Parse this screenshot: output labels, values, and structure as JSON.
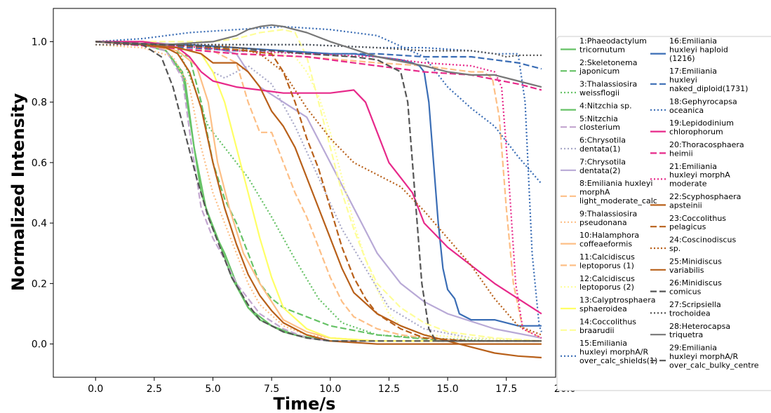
{
  "chart_data": {
    "type": "line",
    "title": "",
    "xlabel": "Time/s",
    "ylabel": "Normalized Intensity",
    "xlim": [
      -1.8,
      19.6
    ],
    "ylim": [
      -0.11,
      1.11
    ],
    "xticks": [
      "0.0",
      "2.5",
      "5.0",
      "7.5",
      "10.0",
      "12.5",
      "15.0",
      "17.5",
      "20.0"
    ],
    "yticks": [
      "0.0",
      "0.2",
      "0.4",
      "0.6",
      "0.8",
      "1.0"
    ],
    "grid": false,
    "legend_position": "right",
    "series": [
      {
        "name": "1:Phaeodactylum tricornutum",
        "color": "#66c266",
        "dash": "solid",
        "x": [
          0,
          2,
          3,
          3.7,
          4.1,
          4.5,
          5,
          5.5,
          6,
          6.5,
          7,
          8,
          9,
          10,
          12,
          15,
          19
        ],
        "y": [
          1,
          0.99,
          0.97,
          0.9,
          0.7,
          0.5,
          0.38,
          0.3,
          0.2,
          0.12,
          0.08,
          0.04,
          0.02,
          0.01,
          0.01,
          0.01,
          0.01
        ]
      },
      {
        "name": "2:Skeletonema japonicum",
        "color": "#66c266",
        "dash": "dashed",
        "x": [
          0,
          2,
          3,
          4,
          4.5,
          5,
          5.5,
          6,
          6.5,
          7,
          7.5,
          8,
          9,
          10,
          12,
          15,
          19
        ],
        "y": [
          1,
          0.99,
          0.98,
          0.95,
          0.8,
          0.6,
          0.48,
          0.4,
          0.3,
          0.2,
          0.15,
          0.12,
          0.09,
          0.06,
          0.03,
          0.01,
          0.01
        ]
      },
      {
        "name": "3:Thalassiosira weissflogii",
        "color": "#66c266",
        "dash": "dotted",
        "x": [
          0,
          2,
          3.5,
          4.2,
          4.8,
          5.5,
          6.5,
          7.5,
          8.5,
          9.5,
          10.5,
          12,
          14,
          17,
          19
        ],
        "y": [
          1,
          1,
          0.98,
          0.85,
          0.72,
          0.65,
          0.55,
          0.42,
          0.28,
          0.15,
          0.07,
          0.03,
          0.02,
          0.01,
          0.01
        ]
      },
      {
        "name": "4:Nitzchia sp.",
        "color": "#66c266",
        "dash": "solid",
        "x": [
          0,
          2,
          3,
          3.8,
          4.2,
          4.7,
          5.2,
          5.8,
          6.5,
          7.5,
          8.5,
          10,
          13,
          19
        ],
        "y": [
          1,
          0.99,
          0.97,
          0.88,
          0.65,
          0.45,
          0.35,
          0.22,
          0.12,
          0.06,
          0.03,
          0.01,
          0.01,
          0.01
        ]
      },
      {
        "name": "5:Nitzchia closterium",
        "color": "#c2a5cf",
        "dash": "dashed",
        "x": [
          0,
          2,
          3,
          3.7,
          4.1,
          4.5,
          5,
          5.5,
          6,
          7,
          8,
          9,
          10,
          13,
          19
        ],
        "y": [
          1,
          0.99,
          0.97,
          0.88,
          0.65,
          0.45,
          0.35,
          0.28,
          0.2,
          0.1,
          0.05,
          0.02,
          0.01,
          0.01,
          0.01
        ]
      },
      {
        "name": "6:Chrysotila dentata(1)",
        "color": "#a9a9c8",
        "dash": "dotted",
        "x": [
          0,
          2,
          3.5,
          4.5,
          5,
          5.5,
          6.5,
          7.5,
          8.5,
          9.5,
          10.5,
          11.5,
          12.5,
          14,
          16,
          19
        ],
        "y": [
          1,
          1,
          0.98,
          0.96,
          0.9,
          0.88,
          0.92,
          0.86,
          0.72,
          0.55,
          0.38,
          0.25,
          0.12,
          0.05,
          0.02,
          0.01
        ]
      },
      {
        "name": "7:Chrysotila dentata(2)",
        "color": "#b8a9d6",
        "dash": "solid",
        "x": [
          0,
          2,
          3.5,
          5,
          6,
          6.5,
          7,
          8,
          9,
          10,
          11,
          12,
          13,
          14,
          15,
          17,
          19
        ],
        "y": [
          1,
          1,
          0.99,
          0.98,
          0.96,
          0.9,
          0.85,
          0.8,
          0.75,
          0.6,
          0.45,
          0.3,
          0.2,
          0.14,
          0.1,
          0.05,
          0.02
        ]
      },
      {
        "name": "8:Emiliania huxleyi morphA light_moderate_calc",
        "color": "#fdbf86",
        "dash": "dashed",
        "x": [
          0,
          3,
          5,
          6,
          6.5,
          7,
          7.5,
          8,
          8.5,
          9,
          9.5,
          10,
          10.5,
          11,
          12,
          13,
          14,
          16,
          19
        ],
        "y": [
          1,
          0.99,
          0.97,
          0.93,
          0.8,
          0.7,
          0.7,
          0.6,
          0.5,
          0.42,
          0.32,
          0.22,
          0.14,
          0.09,
          0.05,
          0.03,
          0.02,
          0.01,
          0.01
        ]
      },
      {
        "name": "9:Thalassiosira pseudonana",
        "color": "#fdbf86",
        "dash": "dotted",
        "x": [
          0,
          2,
          3.3,
          4,
          4.5,
          5,
          5.5,
          6,
          6.5,
          7,
          8,
          9,
          10,
          12,
          15,
          19
        ],
        "y": [
          0.99,
          0.98,
          0.95,
          0.85,
          0.65,
          0.5,
          0.4,
          0.3,
          0.2,
          0.13,
          0.06,
          0.03,
          0.02,
          0.01,
          0.01,
          0.01
        ]
      },
      {
        "name": "10:Halamphora coffeaeformis",
        "color": "#fdbf86",
        "dash": "solid",
        "x": [
          0,
          2,
          3.5,
          4.3,
          4.8,
          5.2,
          5.7,
          6.3,
          7,
          7.5,
          8,
          9,
          10,
          12,
          19
        ],
        "y": [
          1,
          0.99,
          0.97,
          0.92,
          0.8,
          0.6,
          0.45,
          0.3,
          0.2,
          0.14,
          0.08,
          0.04,
          0.02,
          0.01,
          0.01
        ]
      },
      {
        "name": "11:Calcidiscus leptoporus (1)",
        "color": "#fdbf86",
        "dash": "dashed",
        "x": [
          0,
          3,
          6,
          9,
          12,
          14,
          15,
          16,
          16.5,
          16.9,
          17.2,
          17.5,
          17.8,
          18.2,
          19
        ],
        "y": [
          1,
          0.98,
          0.96,
          0.95,
          0.93,
          0.92,
          0.91,
          0.9,
          0.9,
          0.88,
          0.75,
          0.45,
          0.2,
          0.05,
          0.02
        ]
      },
      {
        "name": "12:Calcidiscus leptoporus (2)",
        "color": "#fefe99",
        "dash": "dotted",
        "x": [
          0,
          3,
          5,
          6.5,
          7.5,
          8.5,
          9,
          9.5,
          10,
          10.5,
          11,
          11.5,
          12,
          12.5,
          13,
          14,
          16,
          19
        ],
        "y": [
          1,
          0.99,
          0.98,
          0.97,
          0.96,
          0.95,
          0.9,
          0.82,
          0.7,
          0.55,
          0.4,
          0.28,
          0.18,
          0.1,
          0.06,
          0.03,
          0.02,
          0.01
        ]
      },
      {
        "name": "13:Calyptrosphaera sphaeroidea",
        "color": "#ffff66",
        "dash": "solid",
        "x": [
          0,
          2,
          3.5,
          4.5,
          5,
          5.5,
          6,
          6.5,
          7,
          7.5,
          8,
          9,
          10,
          12,
          19
        ],
        "y": [
          1,
          0.99,
          0.98,
          0.96,
          0.9,
          0.8,
          0.65,
          0.5,
          0.35,
          0.22,
          0.12,
          0.05,
          0.02,
          0.01,
          0.01
        ]
      },
      {
        "name": "14:Coccolithus braarudii",
        "color": "#fefe99",
        "dash": "dashed",
        "x": [
          0,
          3,
          5,
          6,
          7,
          8,
          8.5,
          9,
          9.5,
          10,
          10.5,
          11,
          11.5,
          12,
          13,
          14,
          15,
          17,
          19
        ],
        "y": [
          1,
          1,
          1,
          1.01,
          1.03,
          1.04,
          1.03,
          0.95,
          0.8,
          0.65,
          0.5,
          0.38,
          0.28,
          0.2,
          0.12,
          0.07,
          0.04,
          0.02,
          0.01
        ]
      },
      {
        "name": "15:Emiliania huxleyi morphA/R over_calc_shields(1)",
        "color": "#3a6db5",
        "dash": "dotted",
        "x": [
          0,
          2,
          4,
          6,
          8,
          10,
          12,
          14,
          15,
          16,
          17,
          18,
          19
        ],
        "y": [
          1,
          1.01,
          1.03,
          1.04,
          1.05,
          1.04,
          1.02,
          0.95,
          0.85,
          0.78,
          0.72,
          0.62,
          0.53
        ]
      },
      {
        "name": "16:Emiliania huxleyi haploid (1216)",
        "color": "#3a6db5",
        "dash": "solid",
        "x": [
          0,
          2,
          4,
          6,
          8,
          10,
          11,
          12,
          13,
          13.5,
          13.8,
          14,
          14.2,
          14.4,
          14.6,
          14.8,
          15,
          15.3,
          15.5,
          16,
          17,
          18,
          18.5,
          19
        ],
        "y": [
          1,
          0.99,
          0.99,
          0.98,
          0.97,
          0.96,
          0.96,
          0.95,
          0.94,
          0.93,
          0.92,
          0.9,
          0.8,
          0.6,
          0.4,
          0.25,
          0.18,
          0.15,
          0.1,
          0.08,
          0.08,
          0.06,
          0.06,
          0.06
        ]
      },
      {
        "name": "17:Emiliania huxleyi naked_diploid(1731)",
        "color": "#3a6db5",
        "dash": "dashed",
        "x": [
          0,
          2,
          4,
          6,
          8,
          10,
          12,
          14,
          16,
          17,
          18,
          19
        ],
        "y": [
          1,
          0.99,
          0.98,
          0.97,
          0.97,
          0.96,
          0.96,
          0.95,
          0.95,
          0.94,
          0.93,
          0.91
        ]
      },
      {
        "name": "18:Gephyrocapsa oceanica",
        "color": "#3a6db5",
        "dash": "dotted",
        "x": [
          0,
          3,
          6,
          9,
          12,
          14,
          16,
          17,
          18,
          18.3,
          18.6,
          18.9,
          19
        ],
        "y": [
          1,
          0.99,
          0.99,
          0.99,
          0.98,
          0.98,
          0.97,
          0.96,
          0.96,
          0.8,
          0.3,
          0.06,
          0.04
        ]
      },
      {
        "name": "19:Lepidodinium chlorophorum",
        "color": "#e7298a",
        "dash": "solid",
        "x": [
          0,
          2,
          3,
          3.5,
          4,
          4.5,
          5,
          6,
          7,
          8,
          9,
          10,
          11,
          11.5,
          12,
          12.5,
          13,
          13.5,
          14,
          15,
          16,
          17,
          18,
          19
        ],
        "y": [
          1,
          1,
          0.99,
          0.98,
          0.95,
          0.9,
          0.87,
          0.85,
          0.84,
          0.83,
          0.83,
          0.83,
          0.84,
          0.8,
          0.7,
          0.6,
          0.55,
          0.5,
          0.4,
          0.32,
          0.26,
          0.2,
          0.15,
          0.1
        ]
      },
      {
        "name": "20:Thoracosphaera heimii",
        "color": "#e7298a",
        "dash": "dashed",
        "x": [
          0,
          3,
          6,
          9,
          12,
          14,
          16,
          18,
          19
        ],
        "y": [
          1,
          0.98,
          0.96,
          0.95,
          0.92,
          0.9,
          0.89,
          0.86,
          0.84
        ]
      },
      {
        "name": "21:Emiliania huxleyi morphA moderate",
        "color": "#e7298a",
        "dash": "dotted",
        "x": [
          0,
          3,
          6,
          9,
          12,
          14,
          16,
          17,
          17.3,
          17.6,
          17.9,
          18.2,
          19
        ],
        "y": [
          1,
          0.99,
          0.97,
          0.96,
          0.95,
          0.93,
          0.92,
          0.9,
          0.85,
          0.55,
          0.2,
          0.05,
          0.02
        ]
      },
      {
        "name": "22:Scyphosphaera apsteinii",
        "color": "#b8601a",
        "dash": "solid",
        "x": [
          0,
          2,
          3.5,
          4.5,
          5,
          5.5,
          6,
          6.5,
          7,
          7.5,
          8,
          8.5,
          9,
          9.5,
          10,
          10.5,
          11,
          12,
          13,
          14,
          15,
          16,
          17,
          18,
          19
        ],
        "y": [
          1,
          0.99,
          0.98,
          0.96,
          0.93,
          0.93,
          0.93,
          0.9,
          0.85,
          0.77,
          0.72,
          0.65,
          0.55,
          0.45,
          0.35,
          0.25,
          0.17,
          0.1,
          0.06,
          0.03,
          0.01,
          -0.01,
          -0.03,
          -0.04,
          -0.045
        ]
      },
      {
        "name": "23:Coccolithus pelagicus",
        "color": "#b8601a",
        "dash": "dashed",
        "x": [
          0,
          3,
          5,
          6.5,
          7.5,
          8,
          8.5,
          9,
          9.5,
          10,
          10.5,
          11,
          11.5,
          12,
          13,
          14,
          16,
          19
        ],
        "y": [
          1,
          0.99,
          0.98,
          0.97,
          0.96,
          0.9,
          0.8,
          0.68,
          0.58,
          0.45,
          0.32,
          0.22,
          0.15,
          0.1,
          0.05,
          0.02,
          0.01,
          0.01
        ]
      },
      {
        "name": "24:Coscinodiscus sp.",
        "color": "#b8601a",
        "dash": "dotted",
        "x": [
          0,
          3,
          5,
          6,
          7,
          8,
          9,
          10,
          11,
          12,
          13,
          14,
          15,
          16,
          17,
          18,
          19
        ],
        "y": [
          1,
          0.99,
          0.99,
          0.98,
          0.96,
          0.9,
          0.78,
          0.68,
          0.6,
          0.56,
          0.52,
          0.44,
          0.35,
          0.26,
          0.15,
          0.06,
          0.03
        ]
      },
      {
        "name": "25:Minidiscus variabilis",
        "color": "#b8601a",
        "dash": "solid",
        "x": [
          0,
          2,
          3,
          3.5,
          4,
          4.5,
          5,
          5.5,
          6,
          6.5,
          7,
          7.5,
          8,
          9,
          10,
          12,
          15,
          19
        ],
        "y": [
          1,
          0.99,
          0.98,
          0.96,
          0.9,
          0.78,
          0.6,
          0.45,
          0.33,
          0.23,
          0.16,
          0.11,
          0.07,
          0.03,
          0.01,
          0,
          0,
          0
        ]
      },
      {
        "name": "26:Minidiscus comicus",
        "color": "#555555",
        "dash": "dashed",
        "x": [
          0,
          2,
          2.8,
          3.3,
          3.8,
          4.3,
          4.8,
          5.3,
          5.8,
          6.5,
          7,
          8,
          9,
          10,
          12,
          15,
          19
        ],
        "y": [
          1,
          0.99,
          0.95,
          0.85,
          0.7,
          0.55,
          0.42,
          0.32,
          0.22,
          0.13,
          0.08,
          0.04,
          0.02,
          0.01,
          0.01,
          0.01,
          0.01
        ]
      },
      {
        "name": "27:Scripsiella trochoidea",
        "color": "#555555",
        "dash": "dotted",
        "x": [
          0,
          3,
          6,
          9,
          12,
          14,
          16,
          17,
          17.5,
          18,
          19
        ],
        "y": [
          0.99,
          0.99,
          0.99,
          0.99,
          0.98,
          0.97,
          0.97,
          0.96,
          0.95,
          0.955,
          0.955
        ]
      },
      {
        "name": "28:Heterocapsa triquetra",
        "color": "#777777",
        "dash": "solid",
        "x": [
          0,
          3,
          5,
          6,
          6.5,
          7,
          7.5,
          8,
          9,
          10,
          12,
          14,
          15,
          16,
          17,
          18,
          19
        ],
        "y": [
          1,
          0.99,
          1.0,
          1.02,
          1.04,
          1.05,
          1.055,
          1.05,
          1.03,
          1.0,
          0.95,
          0.92,
          0.9,
          0.89,
          0.89,
          0.87,
          0.85
        ]
      },
      {
        "name": "29:Emiliania huxleyi morphA/R over_calc_bulky_centre",
        "color": "#555555",
        "dash": "dashed",
        "x": [
          0,
          3,
          6,
          9,
          11,
          12,
          13,
          13.3,
          13.6,
          13.9,
          14.2,
          14.5,
          15,
          16,
          19
        ],
        "y": [
          1,
          0.99,
          0.98,
          0.96,
          0.95,
          0.94,
          0.9,
          0.8,
          0.5,
          0.2,
          0.05,
          0.01,
          0.01,
          0.01,
          0.01
        ]
      }
    ]
  }
}
